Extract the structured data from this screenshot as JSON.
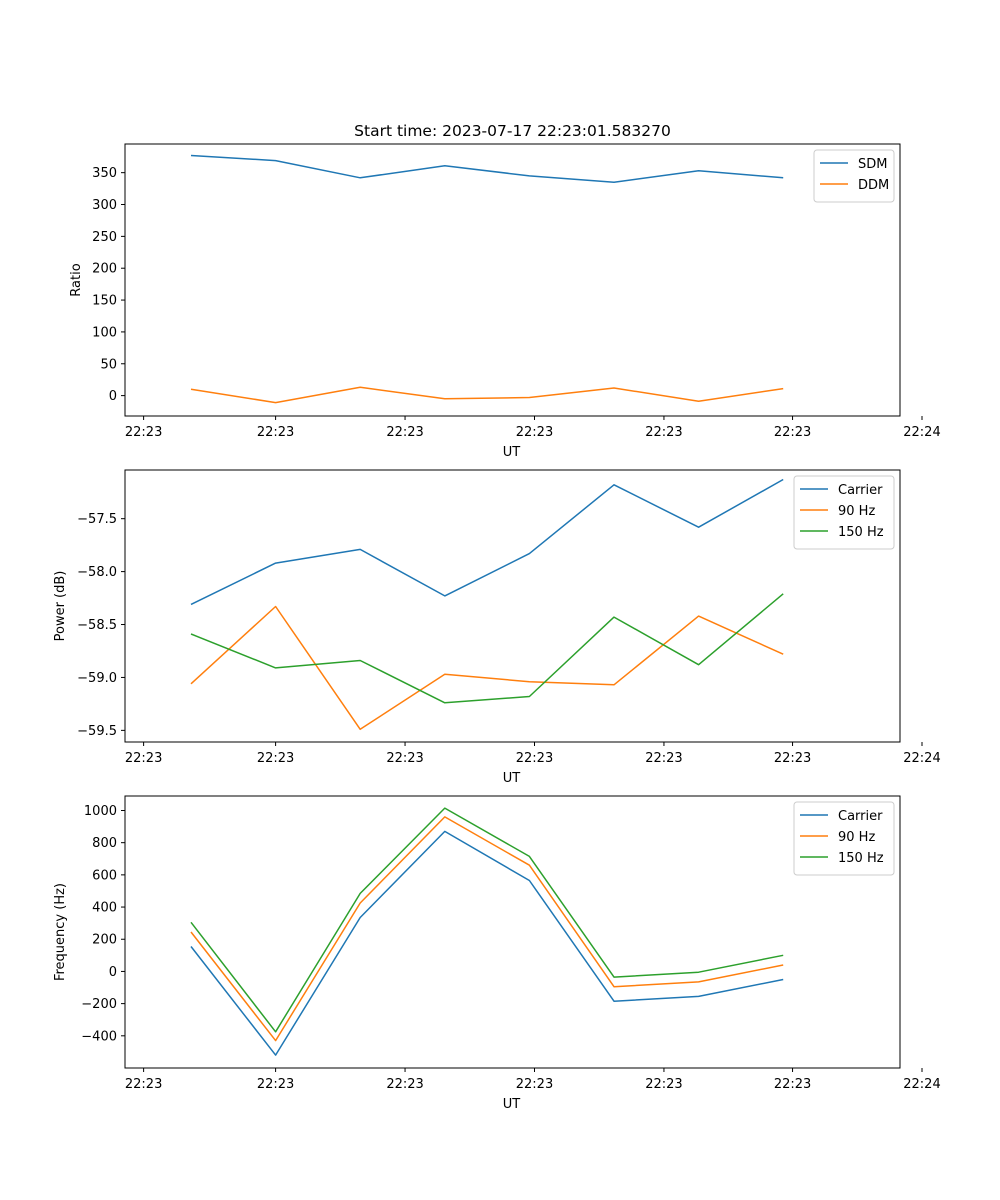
{
  "chart_data": [
    {
      "type": "line",
      "title": "Start time: 2023-07-17 22:23:01.583270",
      "xlabel": "UT",
      "ylabel": "Ratio",
      "x": [
        1,
        2,
        3,
        4,
        5,
        6,
        7,
        8
      ],
      "xlim": [
        0.22,
        9.38
      ],
      "xticks": [
        0.44,
        2,
        3.53,
        5.06,
        6.59,
        8.11,
        9.64
      ],
      "xtick_labels": [
        "22:23",
        "22:23",
        "22:23",
        "22:23",
        "22:23",
        "22:23",
        "22:24"
      ],
      "ylim": [
        -32,
        395
      ],
      "yticks": [
        0,
        50,
        100,
        150,
        200,
        250,
        300,
        350
      ],
      "ytick_labels": [
        "0",
        "50",
        "100",
        "150",
        "200",
        "250",
        "300",
        "350"
      ],
      "legend": "top-right",
      "series": [
        {
          "name": "SDM",
          "color": "#1f77b4",
          "values": [
            377,
            369,
            342,
            361,
            345,
            335,
            353,
            342
          ]
        },
        {
          "name": "DDM",
          "color": "#ff7f0e",
          "values": [
            10,
            -11,
            13,
            -5,
            -3,
            12,
            -9,
            11
          ]
        }
      ]
    },
    {
      "type": "line",
      "title": "",
      "xlabel": "UT",
      "ylabel": "Power (dB)",
      "x": [
        1,
        2,
        3,
        4,
        5,
        6,
        7,
        8
      ],
      "xlim": [
        0.22,
        9.38
      ],
      "xticks": [
        0.44,
        2,
        3.53,
        5.06,
        6.59,
        8.11,
        9.64
      ],
      "xtick_labels": [
        "22:23",
        "22:23",
        "22:23",
        "22:23",
        "22:23",
        "22:23",
        "22:24"
      ],
      "ylim": [
        -59.61,
        -57.04
      ],
      "yticks": [
        -57.5,
        -58.0,
        -58.5,
        -59.0,
        -59.5
      ],
      "ytick_labels": [
        "−57.5",
        "−58.0",
        "−58.5",
        "−59.0",
        "−59.5"
      ],
      "legend": "top-right",
      "series": [
        {
          "name": "Carrier",
          "color": "#1f77b4",
          "values": [
            -58.31,
            -57.92,
            -57.79,
            -58.23,
            -57.83,
            -57.18,
            -57.58,
            -57.13
          ]
        },
        {
          "name": "90 Hz",
          "color": "#ff7f0e",
          "values": [
            -59.06,
            -58.33,
            -59.49,
            -58.97,
            -59.04,
            -59.07,
            -58.42,
            -58.78
          ]
        },
        {
          "name": "150 Hz",
          "color": "#2ca02c",
          "values": [
            -58.59,
            -58.91,
            -58.84,
            -59.24,
            -59.18,
            -58.43,
            -58.88,
            -58.21
          ]
        }
      ]
    },
    {
      "type": "line",
      "title": "",
      "xlabel": "UT",
      "ylabel": "Frequency (Hz)",
      "x": [
        1,
        2,
        3,
        4,
        5,
        6,
        7,
        8
      ],
      "xlim": [
        0.22,
        9.38
      ],
      "xticks": [
        0.44,
        2,
        3.53,
        5.06,
        6.59,
        8.11,
        9.64
      ],
      "xtick_labels": [
        "22:23",
        "22:23",
        "22:23",
        "22:23",
        "22:23",
        "22:23",
        "22:24"
      ],
      "ylim": [
        -600,
        1090
      ],
      "yticks": [
        -400,
        -200,
        0,
        200,
        400,
        600,
        800,
        1000
      ],
      "ytick_labels": [
        "−400",
        "−200",
        "0",
        "200",
        "400",
        "600",
        "800",
        "1000"
      ],
      "legend": "top-right",
      "series": [
        {
          "name": "Carrier",
          "color": "#1f77b4",
          "values": [
            155,
            -520,
            335,
            870,
            565,
            -185,
            -155,
            -50
          ]
        },
        {
          "name": "90 Hz",
          "color": "#ff7f0e",
          "values": [
            245,
            -430,
            425,
            960,
            660,
            -95,
            -65,
            40
          ]
        },
        {
          "name": "150 Hz",
          "color": "#2ca02c",
          "values": [
            305,
            -375,
            485,
            1015,
            715,
            -35,
            -5,
            100
          ]
        }
      ]
    }
  ]
}
